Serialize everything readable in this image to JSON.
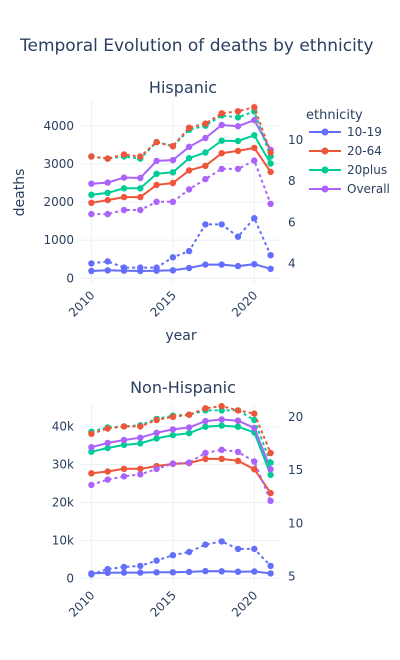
{
  "title": "Temporal Evolution of deaths by ethnicity",
  "legend": {
    "title": "ethnicity",
    "items": [
      {
        "name": "10-19",
        "color": "#636efa"
      },
      {
        "name": "20-64",
        "color": "#EF553B"
      },
      {
        "name": "20plus",
        "color": "#00cc96"
      },
      {
        "name": "Overall",
        "color": "#ab63fa"
      }
    ]
  },
  "chart_data": [
    {
      "type": "line",
      "title": "Hispanic",
      "xlabel": "year",
      "ylabel": "deaths",
      "x": [
        2010,
        2011,
        2012,
        2013,
        2014,
        2015,
        2016,
        2017,
        2018,
        2019,
        2020,
        2021
      ],
      "xlim": [
        2009.3,
        2021.7
      ],
      "xticks": [
        "2010",
        "2015",
        "2020"
      ],
      "xtick_values": [
        2010,
        2015,
        2020
      ],
      "ylim": [
        -150,
        4650
      ],
      "yticks": [
        "0",
        "1000",
        "2000",
        "3000",
        "4000"
      ],
      "ytick_values": [
        0,
        1000,
        2000,
        3000,
        4000
      ],
      "y2lim": [
        3.0,
        11.9
      ],
      "y2ticks": [
        "4",
        "6",
        "8",
        "10"
      ],
      "y2tick_values": [
        4,
        6,
        8,
        10
      ],
      "series": [
        {
          "name": "10-19",
          "axis": "y",
          "style": "solid",
          "values": [
            190,
            210,
            200,
            190,
            200,
            210,
            270,
            360,
            360,
            320,
            370,
            250
          ]
        },
        {
          "name": "20-64",
          "axis": "y",
          "style": "solid",
          "values": [
            1980,
            2050,
            2130,
            2130,
            2450,
            2500,
            2830,
            2950,
            3280,
            3340,
            3420,
            2790
          ]
        },
        {
          "name": "20plus",
          "axis": "y",
          "style": "solid",
          "values": [
            2190,
            2240,
            2360,
            2360,
            2740,
            2780,
            3150,
            3300,
            3610,
            3600,
            3750,
            3010
          ]
        },
        {
          "name": "Overall",
          "axis": "y",
          "style": "solid",
          "values": [
            2480,
            2510,
            2640,
            2630,
            3080,
            3100,
            3450,
            3680,
            4020,
            3990,
            4150,
            3370
          ]
        },
        {
          "name": "10-19",
          "axis": "y2",
          "style": "dot",
          "values": [
            4.0,
            4.1,
            3.8,
            3.8,
            3.8,
            4.3,
            4.6,
            5.9,
            5.9,
            5.3,
            6.2,
            4.4
          ]
        },
        {
          "name": "Overall",
          "axis": "y2",
          "style": "dot",
          "values": [
            6.4,
            6.4,
            6.6,
            6.6,
            7.0,
            7.0,
            7.6,
            8.1,
            8.6,
            8.6,
            9.0,
            6.9
          ]
        },
        {
          "name": "20plus",
          "axis": "y2",
          "style": "dot",
          "values": [
            9.2,
            9.1,
            9.2,
            9.1,
            9.9,
            9.7,
            10.5,
            10.7,
            11.2,
            11.1,
            11.4,
            9.2
          ]
        },
        {
          "name": "20-64",
          "axis": "y2",
          "style": "dot",
          "values": [
            9.2,
            9.1,
            9.3,
            9.2,
            9.9,
            9.7,
            10.6,
            10.8,
            11.3,
            11.4,
            11.6,
            9.4
          ]
        }
      ]
    },
    {
      "type": "line",
      "title": "Non-Hispanic",
      "xlabel": "",
      "ylabel": "",
      "x": [
        2010,
        2011,
        2012,
        2013,
        2014,
        2015,
        2016,
        2017,
        2018,
        2019,
        2020,
        2021
      ],
      "xlim": [
        2009.3,
        2021.7
      ],
      "xticks": [
        "2010",
        "2015",
        "2020"
      ],
      "xtick_values": [
        2010,
        2015,
        2020
      ],
      "ylim": [
        -1500,
        46000
      ],
      "yticks": [
        "0",
        "10k",
        "20k",
        "30k",
        "40k"
      ],
      "ytick_values": [
        0,
        10000,
        20000,
        30000,
        40000
      ],
      "y2lim": [
        4.3,
        21.2
      ],
      "y2ticks": [
        "5",
        "10",
        "15",
        "20"
      ],
      "y2tick_values": [
        5,
        10,
        15,
        20
      ],
      "series": [
        {
          "name": "10-19",
          "axis": "y",
          "style": "solid",
          "values": [
            1300,
            1450,
            1500,
            1500,
            1600,
            1600,
            1700,
            1900,
            1850,
            1750,
            1800,
            1300
          ]
        },
        {
          "name": "20-64",
          "axis": "y",
          "style": "solid",
          "values": [
            27700,
            28200,
            28900,
            28900,
            29600,
            30200,
            30400,
            31500,
            31500,
            31000,
            28800,
            22500
          ]
        },
        {
          "name": "20plus",
          "axis": "y",
          "style": "solid",
          "values": [
            33400,
            34400,
            35200,
            35600,
            36900,
            37800,
            38300,
            40000,
            40300,
            40000,
            38500,
            27300
          ]
        },
        {
          "name": "Overall",
          "axis": "y",
          "style": "solid",
          "values": [
            34600,
            35700,
            36500,
            37100,
            38400,
            39300,
            39800,
            41500,
            41900,
            41600,
            39700,
            28800
          ]
        },
        {
          "name": "10-19",
          "axis": "y2",
          "style": "dot",
          "values": [
            5.2,
            5.7,
            5.9,
            6.0,
            6.5,
            7.0,
            7.3,
            8.0,
            8.3,
            7.6,
            7.6,
            6.0
          ]
        },
        {
          "name": "Overall",
          "axis": "y2",
          "style": "dot",
          "values": [
            13.6,
            14.1,
            14.4,
            14.6,
            15.1,
            15.6,
            15.7,
            16.6,
            16.9,
            16.7,
            15.8,
            12.1
          ]
        },
        {
          "name": "20plus",
          "axis": "y2",
          "style": "dot",
          "values": [
            18.6,
            19.0,
            19.1,
            19.2,
            19.8,
            20.1,
            20.2,
            20.6,
            20.6,
            20.6,
            19.7,
            15.7
          ]
        },
        {
          "name": "20-64",
          "axis": "y2",
          "style": "dot",
          "values": [
            18.4,
            18.9,
            19.1,
            19.1,
            19.7,
            20.0,
            20.2,
            20.8,
            21.0,
            20.6,
            20.3,
            16.6
          ]
        }
      ]
    }
  ]
}
